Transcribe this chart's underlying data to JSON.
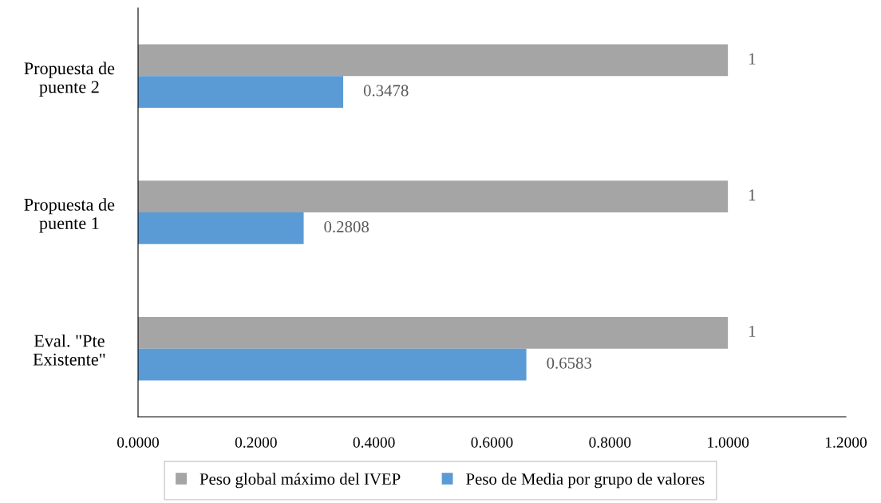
{
  "chart_data": {
    "type": "bar",
    "orientation": "horizontal",
    "categories": [
      "Propuesta de\npuente 2",
      "Propuesta de\npuente 1",
      "Eval. \"Pte\nExistente\""
    ],
    "series": [
      {
        "name": "Peso global máximo del IVEP",
        "color": "#a5a5a5",
        "values": [
          1,
          1,
          1
        ]
      },
      {
        "name": "Peso de Media por grupo de valores",
        "color": "#5b9bd5",
        "values": [
          0.3478,
          0.2808,
          0.6583
        ]
      }
    ],
    "xlim": [
      0,
      1.2
    ],
    "xticks": [
      {
        "value": 0,
        "label": "0.0000"
      },
      {
        "value": 0.2,
        "label": "0.2000"
      },
      {
        "value": 0.4,
        "label": "0.4000"
      },
      {
        "value": 0.6,
        "label": "0.6000"
      },
      {
        "value": 0.8,
        "label": "0.8000"
      },
      {
        "value": 1.0,
        "label": "1.0000"
      },
      {
        "value": 1.2,
        "label": "1.2000"
      }
    ],
    "data_labels": true,
    "grid": false,
    "legend": "bottom"
  }
}
